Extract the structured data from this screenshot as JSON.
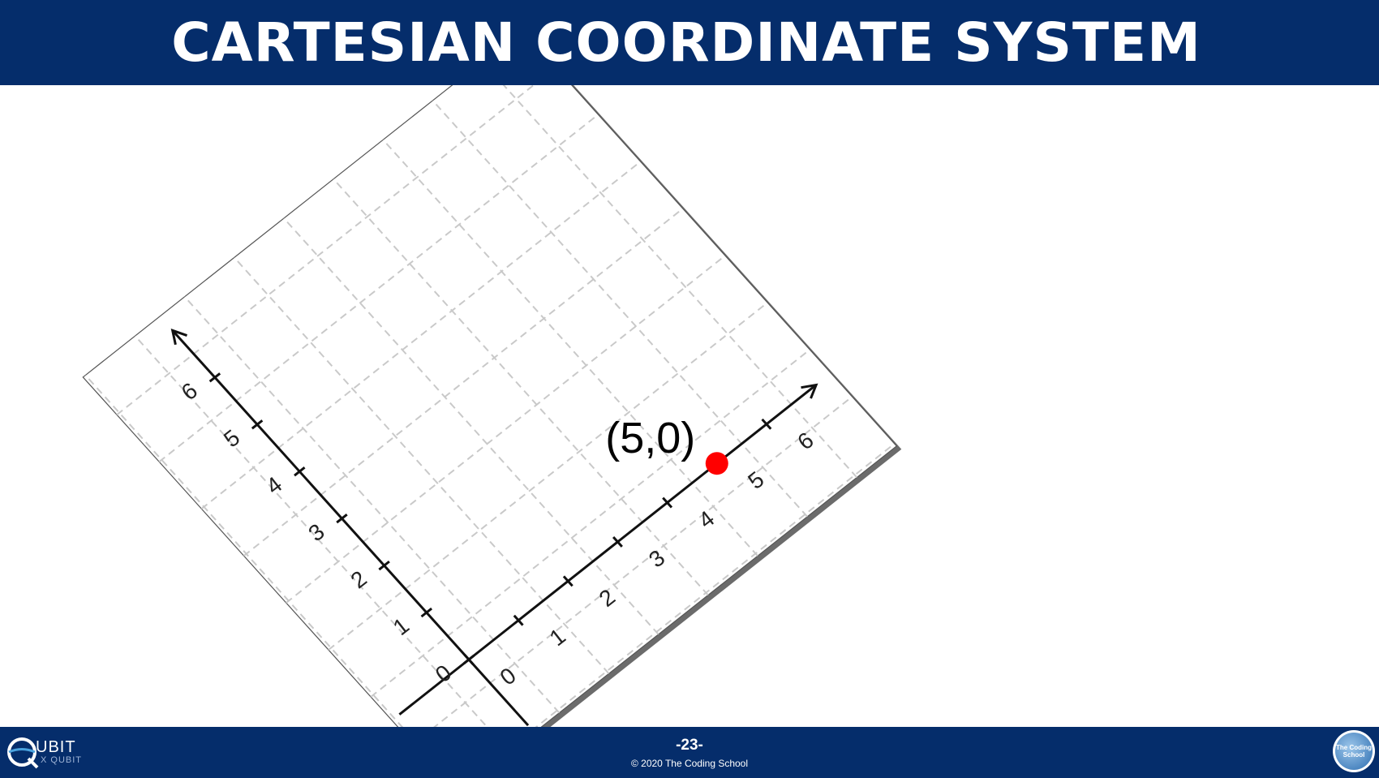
{
  "header": {
    "title": "CARTESIAN COORDINATE SYSTEM"
  },
  "diagram": {
    "x_axis_ticks": [
      "0",
      "1",
      "2",
      "3",
      "4",
      "5",
      "6"
    ],
    "y_axis_ticks": [
      "0",
      "1",
      "2",
      "3",
      "4",
      "5",
      "6"
    ],
    "point": {
      "label": "(5,0)",
      "x": 5,
      "y": 0,
      "color": "#ff0000"
    },
    "grid": "dashed"
  },
  "footer": {
    "logo_left_text": "UBIT",
    "logo_left_sub": "X QUBIT",
    "page_number": "-23-",
    "copyright": "© 2020 The Coding School",
    "logo_right_text": "The Coding School"
  },
  "colors": {
    "banner": "#052d6b",
    "point": "#ff0000"
  }
}
